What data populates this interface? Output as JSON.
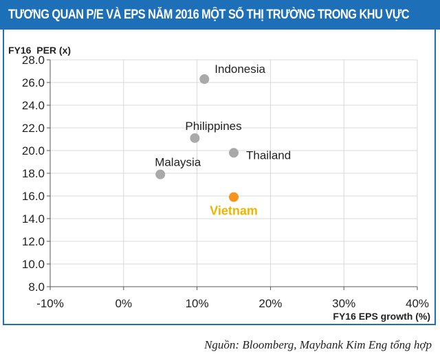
{
  "header": {
    "title": "TƯƠNG QUAN P/E VÀ EPS NĂM 2016 MỘT SỐ THỊ TRƯỜNG TRONG KHU VỰC"
  },
  "source": "Nguồn: Bloomberg, Maybank Kim Eng tổng hợp",
  "colors": {
    "header": "#1d6fb8",
    "point": "#a9a9a9",
    "highlight_point": "#f7941d",
    "highlight_label": "#f0b400",
    "grid": "#d9d9d9"
  },
  "chart_data": {
    "type": "scatter",
    "title": "",
    "xlabel": "FY16 EPS growth (%)",
    "ylabel": "FY16  PER (x)",
    "xlim": [
      -0.1,
      0.4
    ],
    "ylim": [
      8.0,
      28.0
    ],
    "x_ticks": [
      "-10%",
      "0%",
      "10%",
      "20%",
      "30%",
      "40%"
    ],
    "y_ticks": [
      "8.0",
      "10.0",
      "12.0",
      "14.0",
      "16.0",
      "18.0",
      "20.0",
      "22.0",
      "24.0",
      "26.0",
      "28.0"
    ],
    "grid": true,
    "points": [
      {
        "label": "Indonesia",
        "x": 0.11,
        "y": 26.3,
        "highlight": false
      },
      {
        "label": "Philippines",
        "x": 0.097,
        "y": 21.1,
        "highlight": false
      },
      {
        "label": "Thailand",
        "x": 0.15,
        "y": 19.8,
        "highlight": false
      },
      {
        "label": "Malaysia",
        "x": 0.05,
        "y": 17.9,
        "highlight": false
      },
      {
        "label": "Vietnam",
        "x": 0.15,
        "y": 15.9,
        "highlight": true
      }
    ]
  }
}
